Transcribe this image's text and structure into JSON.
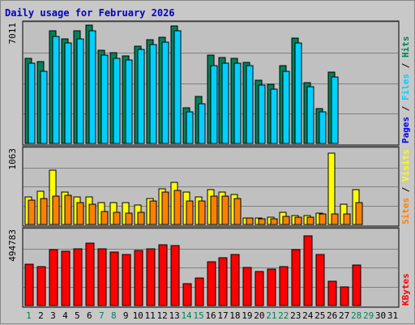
{
  "chart_data": {
    "type": "bar",
    "title": "Daily usage for February 2026",
    "categories": [
      "1",
      "2",
      "3",
      "4",
      "5",
      "6",
      "7",
      "8",
      "9",
      "10",
      "11",
      "12",
      "13",
      "14",
      "15",
      "16",
      "17",
      "18",
      "19",
      "20",
      "21",
      "22",
      "23",
      "24",
      "25",
      "26",
      "27",
      "28",
      "29",
      "30",
      "31"
    ],
    "weekend_days": [
      "1",
      "7",
      "8",
      "14",
      "15",
      "21",
      "22",
      "28",
      "29"
    ],
    "colors": {
      "background": "#c8c8c8",
      "plot_background": "#c0c0c0",
      "title": "#0000cc",
      "hits": "#00805a",
      "files": "#00d0ff",
      "pages": "#0000ff",
      "visits": "#ffff00",
      "sites": "#ff8000",
      "kbytes": "#ff0000",
      "weekend_label": "#00805a",
      "weekday_label": "#000000",
      "slash": "#000000"
    },
    "panels": [
      {
        "id": "hits-panel",
        "max_label": "7011",
        "ymax": 7011,
        "legend": [
          "Hits",
          "Files",
          "Pages"
        ],
        "series": [
          {
            "name": "Hits",
            "values": [
              4950,
              4750,
              6550,
              6050,
              6550,
              6850,
              5400,
              5250,
              5100,
              5650,
              6000,
              6150,
              6800,
              2050,
              2750,
              5150,
              5000,
              4950,
              4700,
              3650,
              3450,
              4500,
              6100,
              3550,
              2000,
              4150,
              null,
              null,
              null,
              null,
              null
            ]
          },
          {
            "name": "Files",
            "values": [
              4650,
              4200,
              6200,
              5850,
              6050,
              6550,
              5150,
              4950,
              4850,
              5450,
              5750,
              5900,
              6550,
              1850,
              2300,
              4500,
              4650,
              4650,
              4500,
              3400,
              3150,
              4200,
              5850,
              3300,
              1850,
              3850,
              null,
              null,
              null,
              null,
              null
            ]
          }
        ]
      },
      {
        "id": "visits-panel",
        "max_label": "1063",
        "ymax": 1063,
        "legend": [
          "Visits",
          "Sites"
        ],
        "series": [
          {
            "name": "Visits",
            "values": [
              380,
              460,
              760,
              450,
              390,
              380,
              310,
              300,
              300,
              270,
              360,
              500,
              590,
              450,
              390,
              490,
              450,
              420,
              95,
              85,
              100,
              170,
              130,
              120,
              160,
              1000,
              280,
              490,
              null,
              null,
              null
            ]
          },
          {
            "name": "Sites",
            "values": [
              340,
              360,
              400,
              410,
              300,
              280,
              180,
              170,
              160,
              170,
              330,
              450,
              470,
              330,
              330,
              400,
              400,
              360,
              90,
              80,
              80,
              110,
              100,
              100,
              150,
              150,
              150,
              300,
              null,
              null,
              null
            ]
          }
        ]
      },
      {
        "id": "kbytes-panel",
        "max_label": "494783",
        "ymax": 494783,
        "legend": [
          "KBytes"
        ],
        "series": [
          {
            "name": "KBytes",
            "values": [
              270000,
              255000,
              365000,
              355000,
              370000,
              405000,
              370000,
              345000,
              330000,
              360000,
              370000,
              395000,
              390000,
              140000,
              180000,
              285000,
              310000,
              330000,
              250000,
              220000,
              235000,
              255000,
              365000,
              455000,
              330000,
              160000,
              120000,
              265000,
              null,
              null,
              null
            ]
          }
        ]
      }
    ]
  }
}
